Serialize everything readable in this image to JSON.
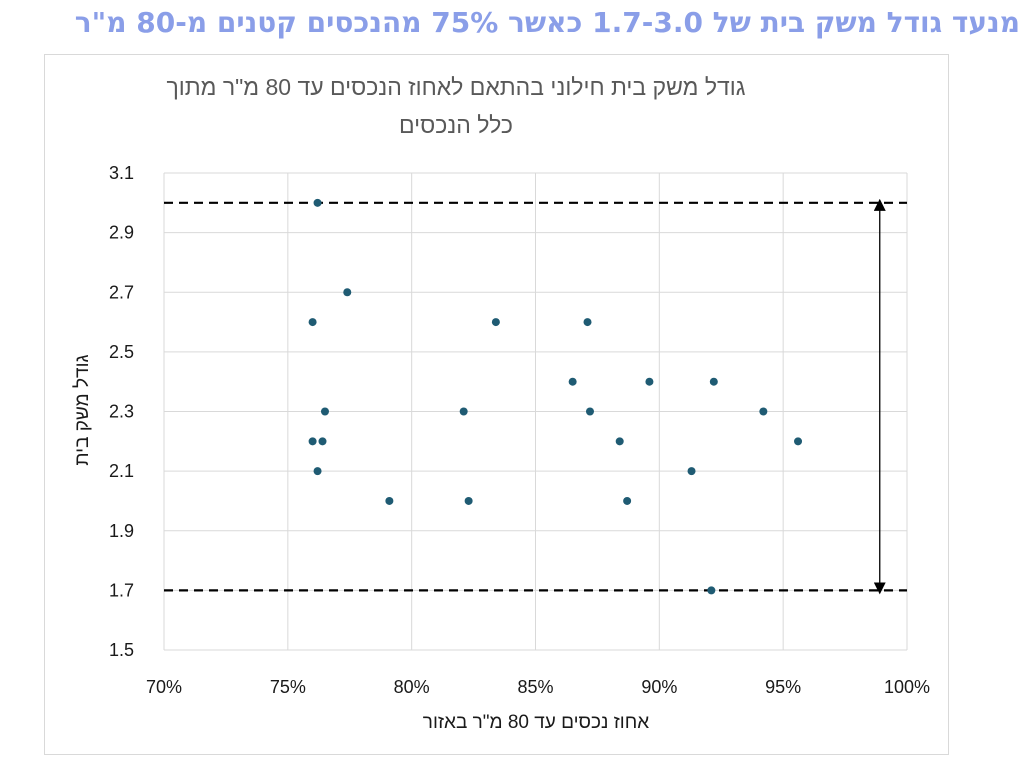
{
  "headline": "מנעד גודל משק בית של 1.7-3.0 כאשר 75% מהנכסים קטנים מ-80 מ\"ר",
  "colors": {
    "headline": "#8a9ee8",
    "point": "#1f5b73",
    "grid": "#d9d9d9",
    "reference_line": "#000000"
  },
  "chart_data": {
    "type": "scatter",
    "title_lines": [
      "גודל משק בית חילוני בהתאם לאחוז הנכסים עד 80 מ\"ר מתוך",
      "כלל הנכסים"
    ],
    "xlabel": "אחוז נכסים עד 80 מ\"ר באזור",
    "ylabel": "גודל משק בית",
    "xlim": [
      0.7,
      1.0
    ],
    "ylim": [
      1.5,
      3.1
    ],
    "x_ticks": [
      {
        "value": 0.7,
        "label": "70%"
      },
      {
        "value": 0.75,
        "label": "75%"
      },
      {
        "value": 0.8,
        "label": "80%"
      },
      {
        "value": 0.85,
        "label": "85%"
      },
      {
        "value": 0.9,
        "label": "90%"
      },
      {
        "value": 0.95,
        "label": "95%"
      },
      {
        "value": 1.0,
        "label": "100%"
      }
    ],
    "y_ticks": [
      {
        "value": 1.5,
        "label": "1.5"
      },
      {
        "value": 1.7,
        "label": "1.7"
      },
      {
        "value": 1.9,
        "label": "1.9"
      },
      {
        "value": 2.1,
        "label": "2.1"
      },
      {
        "value": 2.3,
        "label": "2.3"
      },
      {
        "value": 2.5,
        "label": "2.5"
      },
      {
        "value": 2.7,
        "label": "2.7"
      },
      {
        "value": 2.9,
        "label": "2.9"
      },
      {
        "value": 3.1,
        "label": "3.1"
      }
    ],
    "grid": true,
    "points": [
      {
        "x": 0.762,
        "y": 3.0
      },
      {
        "x": 0.774,
        "y": 2.7
      },
      {
        "x": 0.76,
        "y": 2.6
      },
      {
        "x": 0.765,
        "y": 2.3
      },
      {
        "x": 0.76,
        "y": 2.2
      },
      {
        "x": 0.764,
        "y": 2.2
      },
      {
        "x": 0.762,
        "y": 2.1
      },
      {
        "x": 0.791,
        "y": 2.0
      },
      {
        "x": 0.821,
        "y": 2.3
      },
      {
        "x": 0.823,
        "y": 2.0
      },
      {
        "x": 0.834,
        "y": 2.6
      },
      {
        "x": 0.865,
        "y": 2.4
      },
      {
        "x": 0.871,
        "y": 2.6
      },
      {
        "x": 0.872,
        "y": 2.3
      },
      {
        "x": 0.884,
        "y": 2.2
      },
      {
        "x": 0.887,
        "y": 2.0
      },
      {
        "x": 0.896,
        "y": 2.4
      },
      {
        "x": 0.913,
        "y": 2.1
      },
      {
        "x": 0.922,
        "y": 2.4
      },
      {
        "x": 0.921,
        "y": 1.7
      },
      {
        "x": 0.942,
        "y": 2.3
      },
      {
        "x": 0.956,
        "y": 2.2
      }
    ],
    "reference_lines_y": [
      3.0,
      1.7
    ],
    "range_arrow": {
      "x": 0.989,
      "from": 3.0,
      "to": 1.7
    }
  }
}
